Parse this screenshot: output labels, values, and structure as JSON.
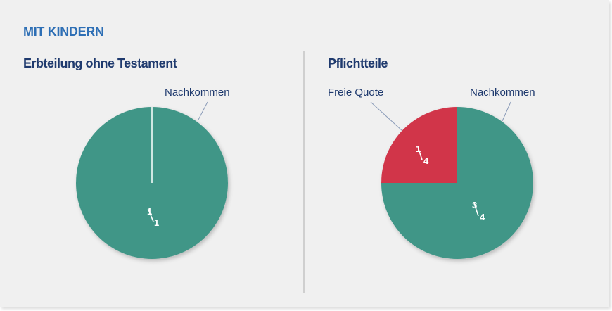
{
  "heading": "MIT KINDERN",
  "colors": {
    "heading": "#2e6fb5",
    "title": "#1f3a6e",
    "nachkommen": "#3f9687",
    "freie_quote": "#d1344a",
    "separator": "#cfe7e2",
    "panel": "#f0f0f0"
  },
  "chart_data": [
    {
      "type": "pie",
      "title": "Erbteilung ohne Testament",
      "slices": [
        {
          "label": "Nachkommen",
          "value": 1.0,
          "fraction": {
            "num": "1",
            "den": "1"
          },
          "color": "#3f9687"
        }
      ]
    },
    {
      "type": "pie",
      "title": "Pflichtteile",
      "slices": [
        {
          "label": "Nachkommen",
          "value": 0.75,
          "fraction": {
            "num": "3",
            "den": "4"
          },
          "color": "#3f9687"
        },
        {
          "label": "Freie Quote",
          "value": 0.25,
          "fraction": {
            "num": "1",
            "den": "4"
          },
          "color": "#d1344a"
        }
      ]
    }
  ]
}
